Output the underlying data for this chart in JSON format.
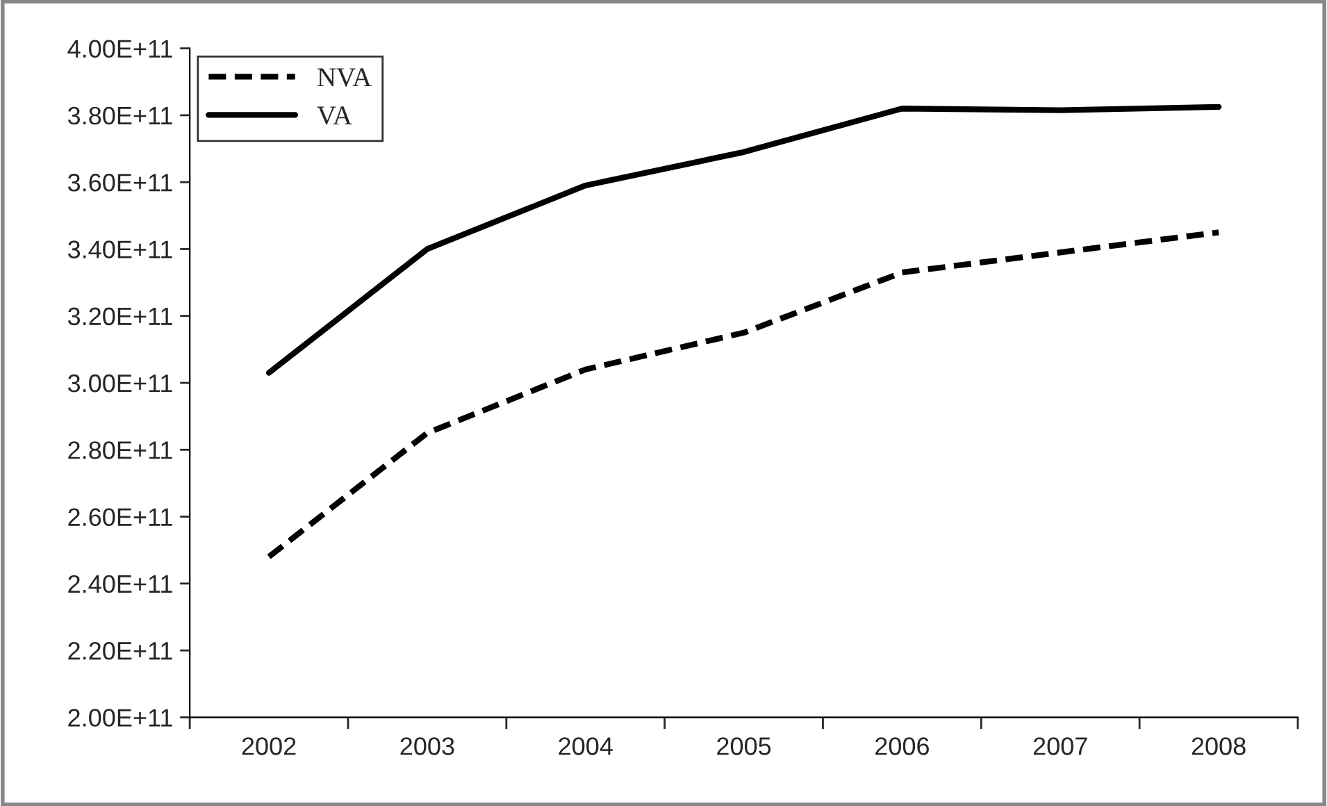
{
  "chart_data": {
    "type": "line",
    "categories": [
      "2002",
      "2003",
      "2004",
      "2005",
      "2006",
      "2007",
      "2008"
    ],
    "series": [
      {
        "name": "NVA",
        "color": "#000000",
        "line_style": "dashed",
        "values": [
          248000000000.0,
          285000000000.0,
          304000000000.0,
          315000000000.0,
          333000000000.0,
          339000000000.0,
          345000000000.0
        ]
      },
      {
        "name": "VA",
        "color": "#000000",
        "line_style": "solid",
        "values": [
          303000000000.0,
          340000000000.0,
          359000000000.0,
          369000000000.0,
          382000000000.0,
          381500000000.0,
          382500000000.0
        ]
      }
    ],
    "ylim": [
      200000000000.0,
      400000000000.0
    ],
    "yticks": [
      {
        "value": 200000000000.0,
        "label": "2.00E+11"
      },
      {
        "value": 220000000000.0,
        "label": "2.20E+11"
      },
      {
        "value": 240000000000.0,
        "label": "2.40E+11"
      },
      {
        "value": 260000000000.0,
        "label": "2.60E+11"
      },
      {
        "value": 280000000000.0,
        "label": "2.80E+11"
      },
      {
        "value": 300000000000.0,
        "label": "3.00E+11"
      },
      {
        "value": 320000000000.0,
        "label": "3.20E+11"
      },
      {
        "value": 340000000000.0,
        "label": "3.40E+11"
      },
      {
        "value": 360000000000.0,
        "label": "3.60E+11"
      },
      {
        "value": 380000000000.0,
        "label": "3.80E+11"
      },
      {
        "value": 400000000000.0,
        "label": "4.00E+11"
      }
    ],
    "grid": false,
    "legend": "top left",
    "marker": "none"
  }
}
